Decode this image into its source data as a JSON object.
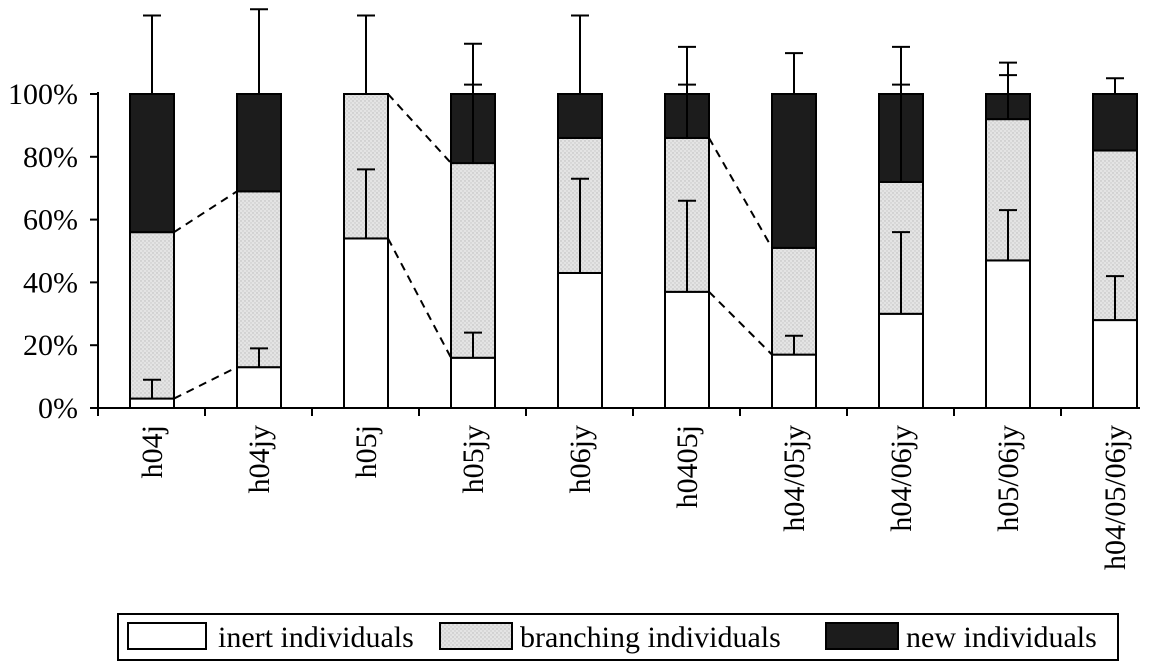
{
  "chart_data": {
    "type": "bar",
    "stacked": true,
    "normalized_percent": true,
    "categories": [
      "h04j",
      "h04jy",
      "h05j",
      "h05jy",
      "h06jy",
      "h0405j",
      "h04/05jy",
      "h04/06jy",
      "h05/06jy",
      "h04/05/06jy"
    ],
    "series": [
      {
        "name": "inert individuals",
        "fill": "#ffffff",
        "values": [
          3,
          13,
          54,
          16,
          43,
          37,
          17,
          30,
          47,
          28
        ],
        "error_top": [
          9,
          19,
          76,
          24,
          73,
          66,
          23,
          56,
          63,
          42
        ]
      },
      {
        "name": "branching individuals",
        "fill": "#dcdcdc",
        "values": [
          53,
          56,
          46,
          62,
          43,
          49,
          34,
          42,
          45,
          54
        ],
        "error_top": [
          null,
          null,
          null,
          103,
          null,
          103,
          null,
          103,
          106,
          null
        ]
      },
      {
        "name": "new individuals",
        "fill": "#1c1c1c",
        "values": [
          44,
          31,
          0,
          22,
          14,
          14,
          49,
          28,
          8,
          18
        ],
        "error_top": [
          125,
          127,
          125,
          116,
          125,
          115,
          113,
          115,
          110,
          105
        ]
      }
    ],
    "connectors": [
      {
        "from": 0,
        "to": 1,
        "levels": [
          3,
          56
        ],
        "to_levels": [
          13,
          69
        ]
      },
      {
        "from": 2,
        "to": 3,
        "levels": [
          54,
          100
        ],
        "to_levels": [
          16,
          78
        ]
      },
      {
        "from": 5,
        "to": 6,
        "levels": [
          37,
          86
        ],
        "to_levels": [
          17,
          51
        ]
      }
    ],
    "yticks": [
      "0%",
      "20%",
      "40%",
      "60%",
      "80%",
      "100%"
    ],
    "ylim": [
      0,
      100
    ],
    "title": "",
    "xlabel": "",
    "ylabel": "",
    "legend_position": "bottom",
    "grid": false
  }
}
